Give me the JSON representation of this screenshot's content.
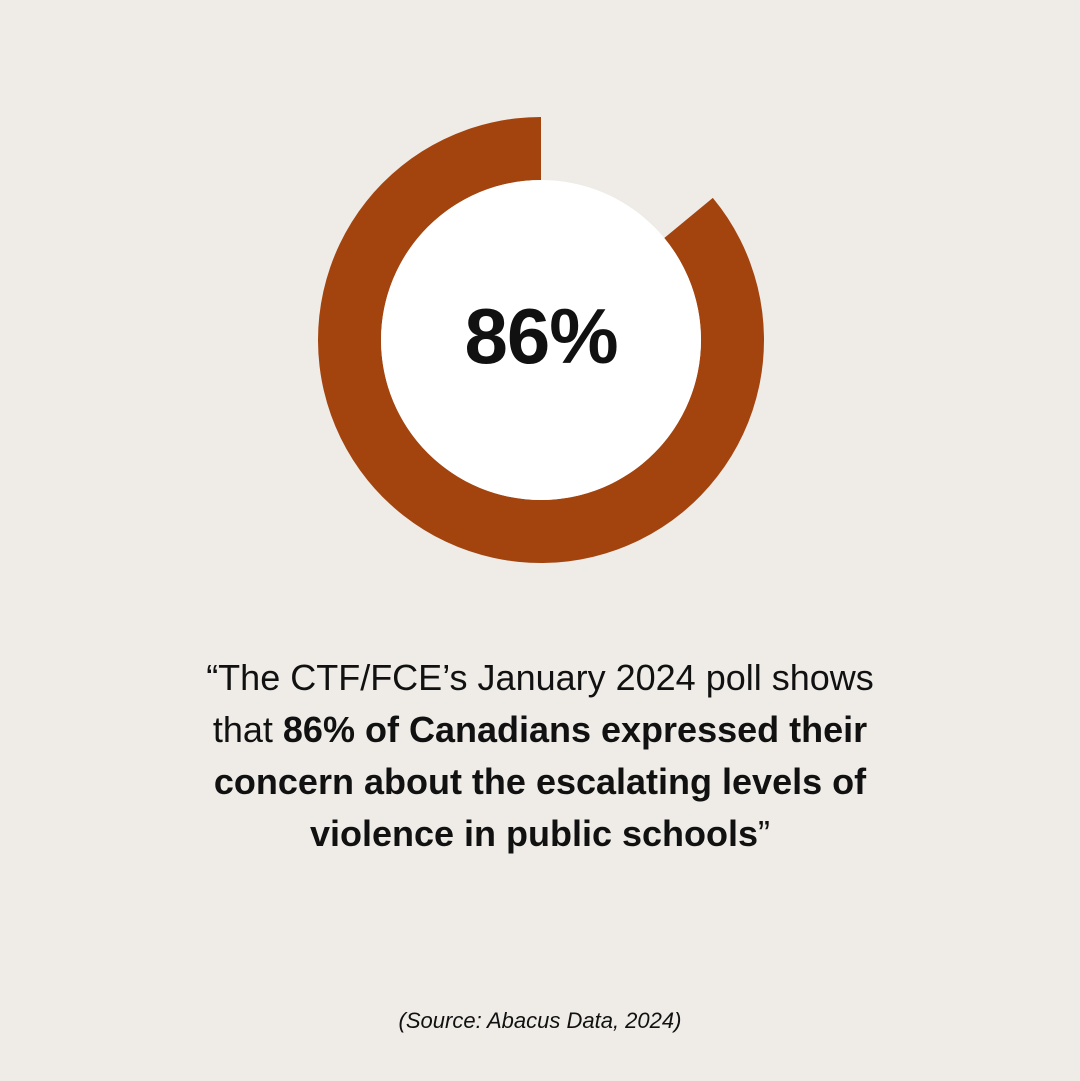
{
  "colors": {
    "background": "#efece8",
    "accent": "#a3440f",
    "inner": "#ffffff",
    "text": "#111111"
  },
  "chart_data": {
    "type": "pie",
    "title": "",
    "values": [
      86,
      14
    ],
    "center_label": "86%",
    "filled_color": "#a3440f"
  },
  "quote": {
    "line1": "“The CTF/FCE’s January 2024 poll shows",
    "line2_plain": "that ",
    "line2_bold": "86% of Canadians expressed their",
    "line3_bold": "concern about the escalating levels of",
    "line4_bold": "violence in public schools",
    "line4_plain": "”"
  },
  "source": "(Source: Abacus Data, 2024)"
}
